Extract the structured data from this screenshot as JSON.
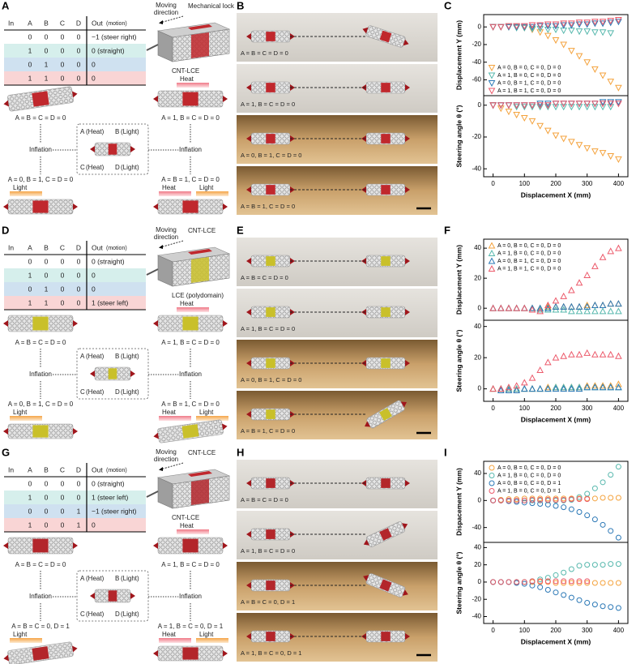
{
  "rows": [
    {
      "letters": [
        "A",
        "B",
        "C"
      ],
      "table": {
        "header": [
          "In",
          "A",
          "B",
          "C",
          "D",
          "Out"
        ],
        "header_note": "(motion)",
        "rows": [
          [
            "0",
            "0",
            "0",
            "0",
            "−1 (steer right)"
          ],
          [
            "1",
            "0",
            "0",
            "0",
            "0 (straight)"
          ],
          [
            "0",
            "1",
            "0",
            "0",
            "0"
          ],
          [
            "1",
            "1",
            "0",
            "0",
            "0"
          ]
        ]
      },
      "device_labels": [
        "Moving",
        "direction",
        "Mechanical lock",
        "CNT-LCE"
      ],
      "states": [
        "A = B = C = D = 0",
        "A = 1, B = C = D = 0",
        "A = 0, B = 1, C = D = 0",
        "A = B = 1, C = D = 0"
      ],
      "inputs": [
        {
          "key": "A",
          "mode": "(Heat)"
        },
        {
          "key": "B",
          "mode": "(Light)"
        },
        {
          "key": "C",
          "mode": "(Heat)"
        },
        {
          "key": "D",
          "mode": "(Light)"
        }
      ],
      "inflation": "Inflation",
      "stimuli": {
        "top_right": [
          "Heat"
        ],
        "bottom_left": [
          "Light"
        ],
        "bottom_right": [
          "Heat",
          "Light"
        ]
      }
    },
    {
      "letters": [
        "D",
        "E",
        "F"
      ],
      "table": {
        "header": [
          "In",
          "A",
          "B",
          "C",
          "D",
          "Out"
        ],
        "header_note": "(motion)",
        "rows": [
          [
            "0",
            "0",
            "0",
            "0",
            "0 (straight)"
          ],
          [
            "1",
            "0",
            "0",
            "0",
            "0"
          ],
          [
            "0",
            "1",
            "0",
            "0",
            "0"
          ],
          [
            "1",
            "1",
            "0",
            "0",
            "1 (steer left)"
          ]
        ]
      },
      "device_labels": [
        "Moving",
        "direction",
        "CNT-LCE",
        "LCE (polydomain)"
      ],
      "states": [
        "A = B = C = D = 0",
        "A = 1, B = C = D = 0",
        "A = 0, B = 1, C = D = 0",
        "A = B = 1, C = D = 0"
      ],
      "inputs": [
        {
          "key": "A",
          "mode": "(Heat)"
        },
        {
          "key": "B",
          "mode": "(Light)"
        },
        {
          "key": "C",
          "mode": "(Heat)"
        },
        {
          "key": "D",
          "mode": "(Light)"
        }
      ],
      "inflation": "Inflation",
      "stimuli": {
        "top_right": [
          "Heat"
        ],
        "bottom_left": [
          "Light"
        ],
        "bottom_right": [
          "Heat",
          "Light"
        ]
      }
    },
    {
      "letters": [
        "G",
        "H",
        "I"
      ],
      "table": {
        "header": [
          "In",
          "A",
          "B",
          "C",
          "D",
          "Out"
        ],
        "header_note": "(motion)",
        "rows": [
          [
            "0",
            "0",
            "0",
            "0",
            "0 (straight)"
          ],
          [
            "1",
            "0",
            "0",
            "0",
            "1 (steer left)"
          ],
          [
            "0",
            "0",
            "0",
            "1",
            "−1 (steer right)"
          ],
          [
            "1",
            "0",
            "0",
            "1",
            "0"
          ]
        ]
      },
      "device_labels": [
        "Moving",
        "direction",
        "CNT-LCE",
        "CNT-LCE"
      ],
      "states": [
        "A = B = C = D = 0",
        "A = 1, B = C = D = 0",
        "A = B = C = 0, D = 1",
        "A = 1, B = C = 0, D = 1"
      ],
      "inputs": [
        {
          "key": "A",
          "mode": "(Heat)"
        },
        {
          "key": "B",
          "mode": "(Light)"
        },
        {
          "key": "C",
          "mode": "(Heat)"
        },
        {
          "key": "D",
          "mode": "(Light)"
        }
      ],
      "inflation": "Inflation",
      "stimuli": {
        "top_right": [
          "Heat"
        ],
        "bottom_left": [
          "Light"
        ],
        "bottom_right": [
          "Heat",
          "Light"
        ]
      }
    }
  ],
  "chart_data": [
    {
      "type": "scatter",
      "marker": "triangle-down",
      "legend": "lower left",
      "y_label": "Displacement Y (mm)",
      "x": [
        0,
        25,
        50,
        75,
        100,
        125,
        150,
        175,
        200,
        225,
        250,
        275,
        300,
        325,
        350,
        375,
        400
      ],
      "xlim": [
        -30,
        430
      ],
      "ylim": [
        -78,
        14
      ],
      "yticks": [
        -60,
        -40,
        -20,
        0
      ],
      "series": [
        {
          "name": "A = 0, B = 0, C = 0, D = 0",
          "color": "#f4a23c",
          "values": [
            0,
            0,
            0,
            0,
            -1,
            -3,
            -6,
            -10,
            -15,
            -20,
            -27,
            -33,
            -40,
            -48,
            -55,
            -62,
            -69
          ]
        },
        {
          "name": "A = 1, B = 0, C = 0, D = 0",
          "color": "#57b8ad",
          "values": [
            0,
            0,
            0,
            -1,
            -1,
            -2,
            -2,
            -3,
            -3,
            -4,
            -4,
            -5,
            -5,
            -6,
            -6,
            -7,
            null
          ]
        },
        {
          "name": "A = 0, B = 1, C = 0, D = 0",
          "color": "#2b78b6",
          "values": [
            0,
            0,
            0,
            0,
            0,
            0,
            1,
            1,
            1,
            2,
            2,
            3,
            3,
            4,
            4,
            5,
            6
          ]
        },
        {
          "name": "A = 1, B = 1, C = 0, D = 0",
          "color": "#ec5a6b",
          "values": [
            0,
            0,
            1,
            1,
            1,
            2,
            2,
            3,
            3,
            4,
            4,
            5,
            5,
            6,
            6,
            7,
            8
          ]
        }
      ]
    },
    {
      "type": "scatter",
      "marker": "triangle-down",
      "y_label": "Steering angle θ (°)",
      "x_label": "Displacement X (mm)",
      "x": [
        0,
        25,
        50,
        75,
        100,
        125,
        150,
        175,
        200,
        225,
        250,
        275,
        300,
        325,
        350,
        375,
        400
      ],
      "xlim": [
        -30,
        430
      ],
      "ylim": [
        -45,
        6
      ],
      "yticks": [
        -40,
        -20,
        0
      ],
      "xticks": [
        0,
        100,
        200,
        300,
        400
      ],
      "series": [
        {
          "color": "#f4a23c",
          "values": [
            0,
            -2,
            -4,
            -6,
            -8,
            -10,
            -13,
            -16,
            -19,
            -21,
            -23,
            -25,
            -27,
            -29,
            -30,
            -32,
            -34
          ]
        },
        {
          "color": "#57b8ad",
          "values": [
            0,
            0,
            0,
            -1,
            -1,
            -1,
            -1,
            -1,
            -1,
            -1,
            -1,
            -1,
            -1,
            -1,
            -1,
            -1,
            null
          ]
        },
        {
          "color": "#2b78b6",
          "values": [
            0,
            0,
            0,
            0,
            0,
            0,
            1,
            1,
            1,
            1,
            1,
            1,
            1,
            1,
            2,
            2,
            2
          ]
        },
        {
          "color": "#ec5a6b",
          "values": [
            0,
            0,
            0,
            0,
            0,
            0,
            0,
            0,
            1,
            1,
            1,
            1,
            1,
            1,
            1,
            1,
            1
          ]
        }
      ]
    },
    {
      "type": "scatter",
      "marker": "triangle-up",
      "legend": "upper left",
      "y_label": "Displacement Y (mm)",
      "x": [
        0,
        25,
        50,
        75,
        100,
        125,
        150,
        175,
        200,
        225,
        250,
        275,
        300,
        325,
        350,
        375,
        400
      ],
      "xlim": [
        -30,
        430
      ],
      "ylim": [
        -8,
        46
      ],
      "yticks": [
        0,
        20,
        40
      ],
      "series": [
        {
          "name": "A = 0, B = 0, C = 0, D = 0",
          "color": "#f4a23c",
          "values": [
            0,
            0,
            0,
            0,
            0,
            0,
            0,
            1,
            1,
            1,
            1,
            1,
            2,
            2,
            2,
            3,
            3
          ]
        },
        {
          "name": "A = 1, B = 0, C = 0, D = 0",
          "color": "#57b8ad",
          "values": [
            0,
            0,
            0,
            0,
            0,
            0,
            -1,
            -1,
            -1,
            -1,
            -2,
            -2,
            -2,
            -2,
            -2,
            -2,
            -2
          ]
        },
        {
          "name": "A = 0, B = 1, C = 0, D = 0",
          "color": "#2b78b6",
          "values": [
            0,
            0,
            0,
            0,
            0,
            0,
            0,
            0,
            1,
            1,
            1,
            1,
            1,
            2,
            2,
            3,
            3
          ]
        },
        {
          "name": "A = 1, B = 1, C = 0, D = 0",
          "color": "#ec5a6b",
          "values": [
            0,
            0,
            0,
            0,
            0,
            -1,
            -2,
            2,
            5,
            8,
            12,
            17,
            22,
            28,
            34,
            38,
            40
          ]
        }
      ]
    },
    {
      "type": "scatter",
      "marker": "triangle-up",
      "y_label": "Steering angle θ (°)",
      "x_label": "Displacement X (mm)",
      "x": [
        0,
        25,
        50,
        75,
        100,
        125,
        150,
        175,
        200,
        225,
        250,
        275,
        300,
        325,
        350,
        375,
        400
      ],
      "xlim": [
        -30,
        430
      ],
      "ylim": [
        -8,
        44
      ],
      "yticks": [
        0,
        20,
        40
      ],
      "xticks": [
        0,
        100,
        200,
        300,
        400
      ],
      "series": [
        {
          "color": "#f4a23c",
          "values": [
            0,
            0,
            0,
            0,
            0,
            0,
            0,
            1,
            1,
            1,
            1,
            1,
            2,
            2,
            2,
            2,
            3
          ]
        },
        {
          "color": "#57b8ad",
          "values": [
            0,
            0,
            0,
            0,
            0,
            0,
            0,
            0,
            1,
            1,
            1,
            1,
            1,
            1,
            1,
            1,
            1
          ]
        },
        {
          "color": "#2b78b6",
          "values": [
            null,
            -1,
            -1,
            -1,
            0,
            0,
            0,
            0,
            0,
            0,
            0,
            0,
            1,
            1,
            1,
            1,
            1
          ]
        },
        {
          "color": "#ec5a6b",
          "values": [
            0,
            0,
            1,
            2,
            4,
            7,
            12,
            17,
            20,
            21,
            22,
            22,
            23,
            22,
            22,
            22,
            21
          ]
        }
      ]
    },
    {
      "type": "scatter",
      "marker": "circle",
      "legend": "upper left",
      "y_label": "Dispacement Y (mm)",
      "x": [
        0,
        25,
        50,
        75,
        100,
        125,
        150,
        175,
        200,
        225,
        250,
        275,
        300,
        325,
        350,
        375,
        400
      ],
      "xlim": [
        -30,
        430
      ],
      "ylim": [
        -62,
        58
      ],
      "yticks": [
        -40,
        0,
        40
      ],
      "series": [
        {
          "name": "A = 0, B = 0, C = 0, D = 0",
          "color": "#f4a23c",
          "values": [
            0,
            1,
            2,
            2,
            3,
            3,
            3,
            3,
            3,
            3,
            3,
            3,
            3,
            3,
            4,
            4,
            4
          ]
        },
        {
          "name": "A = 1, B = 0, C = 0, D = 0",
          "color": "#57b8ad",
          "values": [
            0,
            0,
            0,
            0,
            0,
            0,
            0,
            0,
            0,
            0,
            1,
            5,
            10,
            18,
            27,
            38,
            50
          ]
        },
        {
          "name": "A = 0, B = 0, C = 0, D = 1",
          "color": "#2b78b6",
          "values": [
            0,
            0,
            -1,
            -2,
            -3,
            -4,
            -5,
            -6,
            -8,
            -10,
            -13,
            -17,
            -22,
            -28,
            -36,
            -45,
            -55
          ]
        },
        {
          "name": "A = 1, B = 0, C = 0, D = 1",
          "color": "#ec5a6b",
          "values": [
            0,
            0,
            0,
            0,
            0,
            1,
            1,
            1,
            1,
            1,
            2,
            2,
            2,
            null,
            null,
            null,
            null
          ]
        }
      ]
    },
    {
      "type": "scatter",
      "marker": "circle",
      "y_label": "Steering angle θ (°)",
      "x_label": "Displacement X (mm)",
      "x": [
        0,
        25,
        50,
        75,
        100,
        125,
        150,
        175,
        200,
        225,
        250,
        275,
        300,
        325,
        350,
        375,
        400
      ],
      "xlim": [
        -30,
        430
      ],
      "ylim": [
        -48,
        46
      ],
      "yticks": [
        -40,
        -20,
        0,
        20,
        40
      ],
      "xticks": [
        0,
        100,
        200,
        300,
        400
      ],
      "series": [
        {
          "color": "#f4a23c",
          "values": [
            0,
            0,
            0,
            0,
            0,
            0,
            0,
            0,
            -1,
            -1,
            -1,
            -1,
            -1,
            -1,
            -1,
            -1,
            -1
          ]
        },
        {
          "color": "#57b8ad",
          "values": [
            0,
            0,
            0,
            0,
            0,
            1,
            3,
            5,
            8,
            11,
            15,
            19,
            20,
            20,
            20,
            21,
            21
          ]
        },
        {
          "color": "#2b78b6",
          "values": [
            0,
            0,
            0,
            -1,
            -2,
            -4,
            -6,
            -9,
            -12,
            -15,
            -18,
            -21,
            -24,
            -26,
            -28,
            -29,
            -30
          ]
        },
        {
          "color": "#ec5a6b",
          "values": [
            0,
            0,
            0,
            0,
            0,
            1,
            1,
            1,
            1,
            1,
            1,
            1,
            1,
            null,
            null,
            null,
            null
          ]
        }
      ]
    }
  ]
}
